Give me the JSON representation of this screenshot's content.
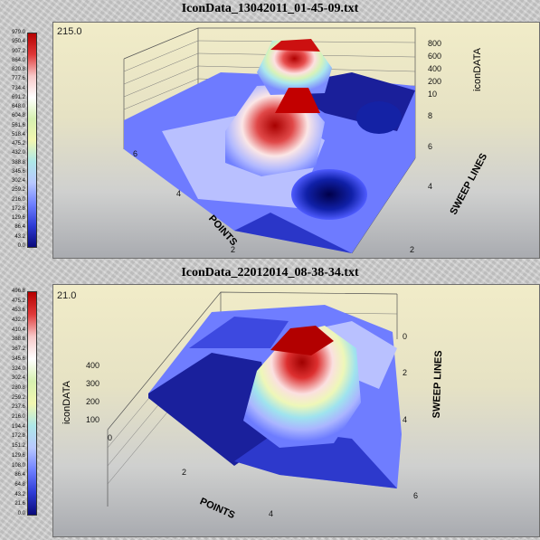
{
  "chart_data": [
    {
      "type": "surface3d",
      "title": "IconData_13042011_01-45-09.txt",
      "zlabel": "iconDATA",
      "xlabel": "POINTS",
      "ylabel": "SWEEP LINES",
      "min_value_label": "215.0",
      "z_ticks": [
        "800",
        "600",
        "400",
        "200"
      ],
      "sweep_ticks": [
        "10",
        "8",
        "6",
        "4",
        "2"
      ],
      "point_ticks": [
        "6",
        "4",
        "2"
      ],
      "colorbar_ticks": [
        "979.0",
        "950.4",
        "907.2",
        "864.0",
        "820.8",
        "777.6",
        "734.4",
        "691.2",
        "648.0",
        "604.8",
        "561.6",
        "518.4",
        "475.2",
        "432.0",
        "388.8",
        "345.6",
        "302.4",
        "259.2",
        "216.0",
        "172.8",
        "129.6",
        "86.4",
        "43.2",
        "0.0"
      ],
      "colorbar_range": [
        0,
        979
      ]
    },
    {
      "type": "surface3d",
      "title": "IconData_22012014_08-38-34.txt",
      "zlabel": "iconDATA",
      "xlabel": "POINTS",
      "ylabel": "SWEEP LINES",
      "min_value_label": "21.0",
      "z_ticks": [
        "400",
        "300",
        "200",
        "100"
      ],
      "sweep_ticks": [
        "0",
        "2",
        "4",
        "6"
      ],
      "point_ticks": [
        "0",
        "2",
        "4"
      ],
      "colorbar_ticks": [
        "496.8",
        "475.2",
        "453.6",
        "432.0",
        "410.4",
        "388.8",
        "367.2",
        "345.6",
        "324.0",
        "302.4",
        "280.8",
        "259.2",
        "237.6",
        "216.0",
        "194.4",
        "172.8",
        "151.2",
        "129.6",
        "108.0",
        "86.4",
        "64.8",
        "43.2",
        "21.6",
        "0.0"
      ],
      "colorbar_range": [
        0,
        496.8
      ]
    }
  ],
  "colormap": [
    "#b50000",
    "#e03a3a",
    "#f7c9c9",
    "#ffffff",
    "#d6f0b0",
    "#f2f7b0",
    "#aee8e8",
    "#b8c8ff",
    "#6f80ff",
    "#2e3bd6",
    "#0a0a7a"
  ]
}
